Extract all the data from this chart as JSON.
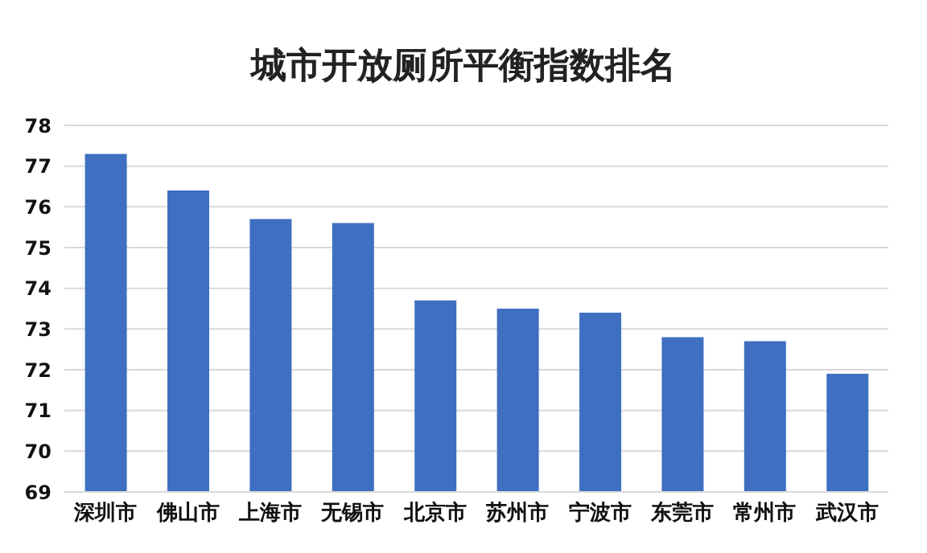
{
  "chart_data": {
    "type": "bar",
    "title": "城市开放厕所平衡指数排名",
    "categories": [
      "深圳市",
      "佛山市",
      "上海市",
      "无锡市",
      "北京市",
      "苏州市",
      "宁波市",
      "东莞市",
      "常州市",
      "武汉市"
    ],
    "values": [
      77.3,
      76.4,
      75.7,
      75.6,
      73.7,
      73.5,
      73.4,
      72.8,
      72.7,
      71.9
    ],
    "color": "#3f6fc0",
    "ylim": [
      69,
      78
    ],
    "yticks": [
      69,
      70,
      71,
      72,
      73,
      74,
      75,
      76,
      77,
      78
    ],
    "grid": "y"
  }
}
